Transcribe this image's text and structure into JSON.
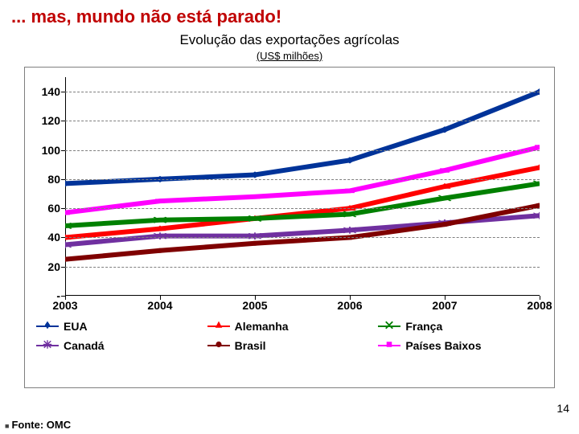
{
  "title": "... mas, mundo não está parado!",
  "subtitle": "Evolução das exportações agrícolas",
  "subunit": "(US$ milhões)",
  "source_prefix": "Fonte: ",
  "source": "OMC",
  "page_number": "14",
  "chart": {
    "type": "line",
    "background_color": "#ffffff",
    "grid_color": "#7f7f7f",
    "axis_color": "#000000",
    "label_color": "#000000",
    "label_fontsize": 14,
    "label_fontweight": "bold",
    "line_width": 2,
    "marker_size": 7,
    "ylim": [
      0,
      150
    ],
    "ytick_step": 20,
    "yticks": [
      0,
      20,
      40,
      60,
      80,
      100,
      120,
      140
    ],
    "ytick_labels": [
      "-",
      "20",
      "40",
      "60",
      "80",
      "100",
      "120",
      "140"
    ],
    "categories": [
      "2003",
      "2004",
      "2005",
      "2006",
      "2007",
      "2008"
    ],
    "series": [
      {
        "name": "EUA",
        "color": "#003399",
        "marker": "diamond",
        "values": [
          77,
          80,
          83,
          93,
          114,
          140
        ]
      },
      {
        "name": "Alemanha",
        "color": "#ff0000",
        "marker": "triangle",
        "values": [
          40,
          46,
          53,
          60,
          75,
          88
        ]
      },
      {
        "name": "França",
        "color": "#008000",
        "marker": "x",
        "values": [
          48,
          52,
          53,
          56,
          67,
          77
        ]
      },
      {
        "name": "Canadá",
        "color": "#7030a0",
        "marker": "star",
        "values": [
          35,
          41,
          41,
          45,
          50,
          55
        ]
      },
      {
        "name": "Brasil",
        "color": "#7f0000",
        "marker": "circle",
        "values": [
          25,
          31,
          36,
          40,
          49,
          62
        ]
      },
      {
        "name": "Países Baixos",
        "color": "#ff00ff",
        "marker": "square",
        "values": [
          57,
          65,
          68,
          72,
          86,
          102
        ]
      }
    ]
  }
}
